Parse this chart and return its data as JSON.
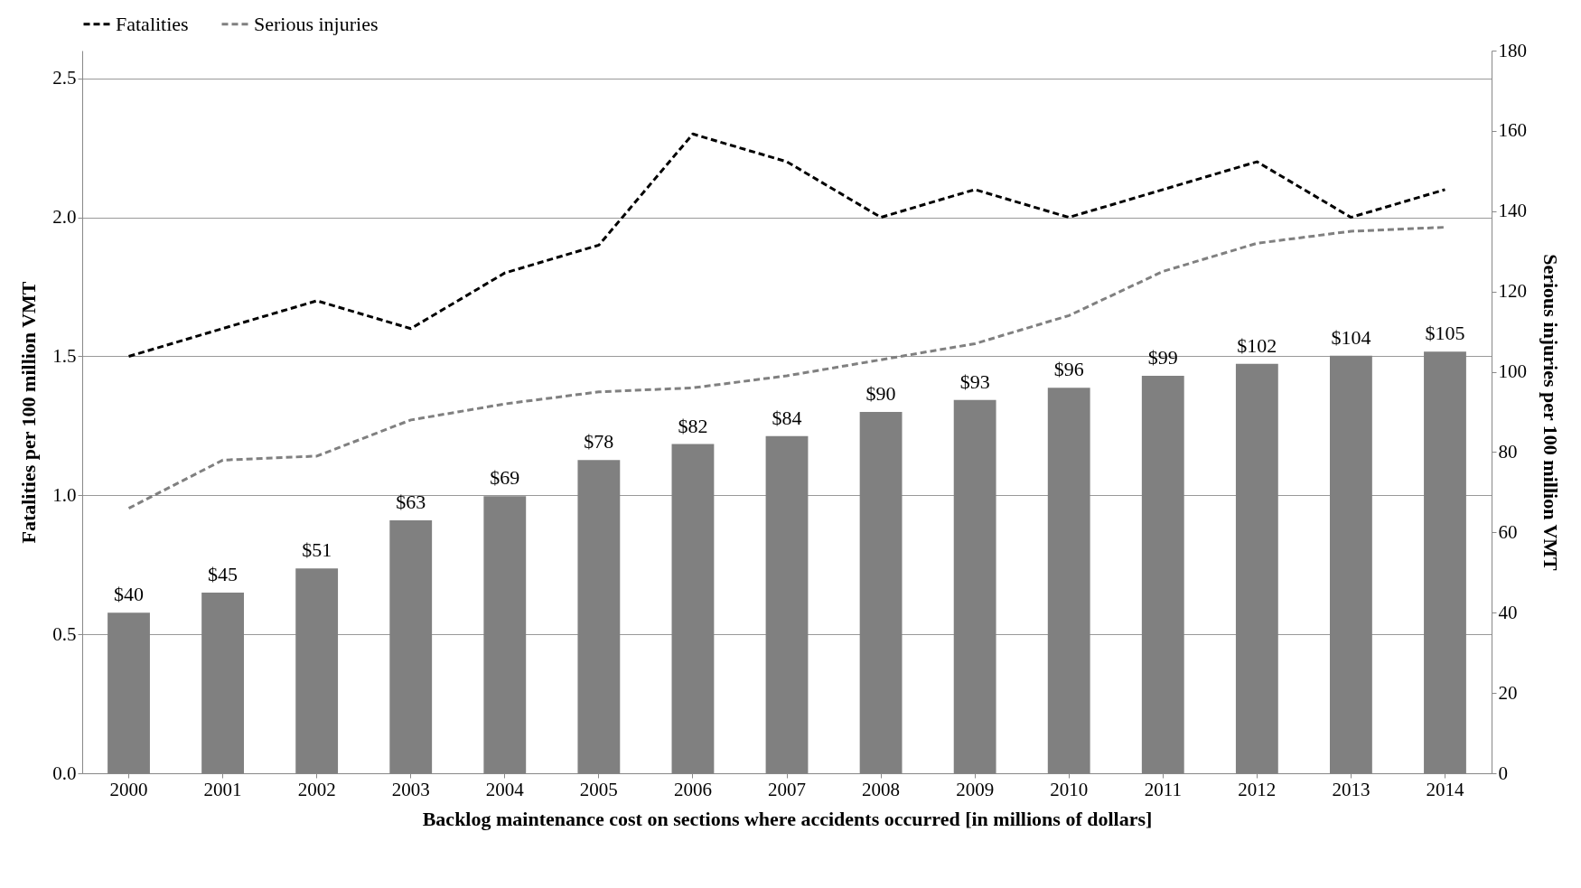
{
  "chart_data": {
    "type": "bar",
    "xlabel": "Backlog maintenance cost on sections where accidents occurred [in millions  of dollars]",
    "ylabel": "Fatalities per 100 million  VMT",
    "y2label": "Serious injuries per 100 million  VMT",
    "categories": [
      "2000",
      "2001",
      "2002",
      "2003",
      "2004",
      "2005",
      "2006",
      "2007",
      "2008",
      "2009",
      "2010",
      "2011",
      "2012",
      "2013",
      "2014"
    ],
    "series": [
      {
        "axis": "y2",
        "color": "#808080",
        "values": [
          40,
          45,
          51,
          63,
          69,
          78,
          82,
          84,
          90,
          93,
          96,
          99,
          102,
          104,
          105
        ],
        "value_labels": [
          "$40",
          "$45",
          "$51",
          "$63",
          "$69",
          "$78",
          "$82",
          "$84",
          "$90",
          "$93",
          "$96",
          "$99",
          "$102",
          "$104",
          "$105"
        ]
      },
      {
        "name": "Fatalities",
        "type": "line",
        "color": "#000000",
        "line_style": "dashed",
        "values": [
          1.5,
          1.6,
          1.7,
          1.6,
          1.8,
          1.9,
          2.3,
          2.2,
          2.0,
          2.1,
          2.0,
          2.1,
          2.2,
          2.0,
          2.1
        ]
      },
      {
        "name": "Serious injuries",
        "type": "line",
        "axis": "y2",
        "color": "#808080",
        "line_style": "dashed",
        "values": [
          66,
          78,
          79,
          88,
          92,
          95,
          96,
          99,
          103,
          107,
          114,
          125,
          132,
          135,
          136
        ]
      }
    ],
    "ylim": [
      0,
      2.6
    ],
    "yticks": [
      {
        "value": 0,
        "label": "0.0"
      },
      {
        "value": 0.5,
        "label": "0.5"
      },
      {
        "value": 1,
        "label": "1.0"
      },
      {
        "value": 1.5,
        "label": "1.5"
      },
      {
        "value": 2,
        "label": "2.0"
      },
      {
        "value": 2.5,
        "label": "2.5"
      }
    ],
    "y2lim": [
      0,
      180
    ],
    "y2ticks": [
      0,
      20,
      40,
      60,
      80,
      100,
      120,
      140,
      160,
      180
    ],
    "grid": "y",
    "legend": "top"
  }
}
